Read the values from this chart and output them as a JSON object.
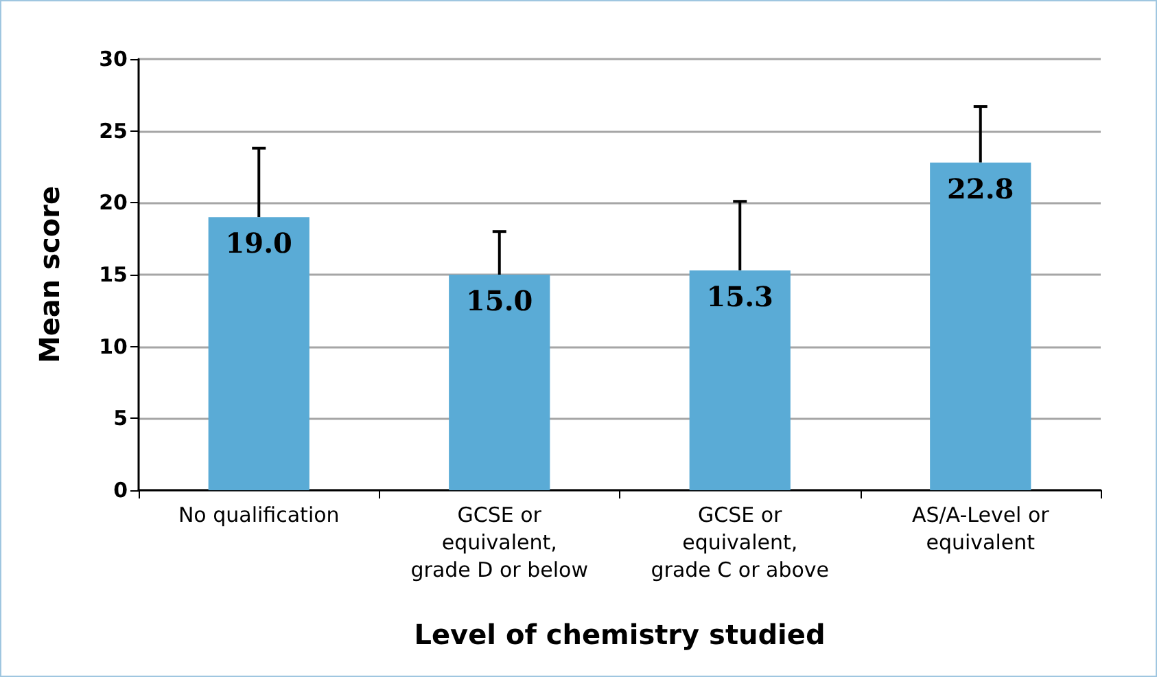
{
  "chart_data": {
    "type": "bar",
    "xlabel": "Level of chemistry studied",
    "ylabel": "Mean score",
    "categories": [
      "No qualification",
      "GCSE or\nequivalent,\ngrade D or below",
      "GCSE or\nequivalent,\ngrade C or above",
      "AS/A-Level or\nequivalent"
    ],
    "values": [
      19.0,
      15.0,
      15.3,
      22.8
    ],
    "color": "#5aabd6",
    "errors": [
      [
        19.0,
        23.8
      ],
      [
        15.0,
        18.0
      ],
      [
        15.3,
        20.1
      ],
      [
        22.8,
        26.7
      ]
    ],
    "value_labels": [
      "19.0",
      "15.0",
      "15.3",
      "22.8"
    ],
    "ylim": [
      0,
      30
    ],
    "yticks": [
      0,
      5,
      10,
      15,
      20,
      25,
      30
    ],
    "grid": "y"
  }
}
